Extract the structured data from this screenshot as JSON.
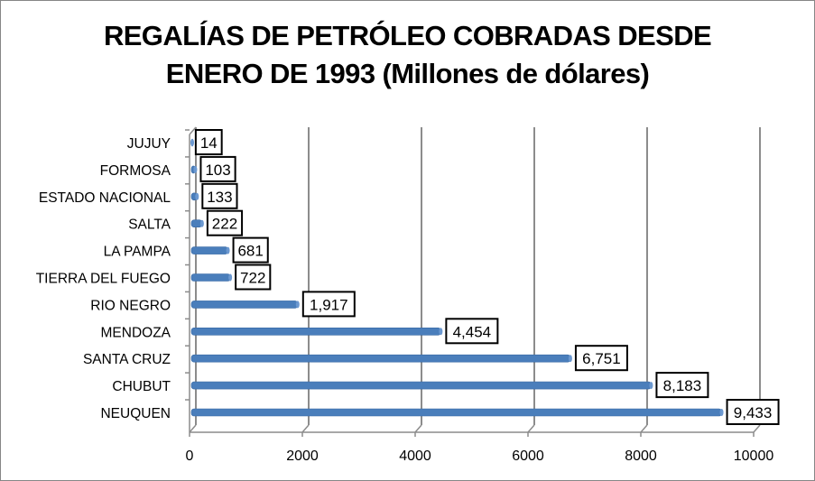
{
  "chart_data": {
    "type": "bar",
    "orientation": "horizontal",
    "title_lines": [
      "REGALÍAS DE PETRÓLEO COBRADAS DESDE",
      "ENERO DE 1993 (Millones de dólares)"
    ],
    "categories": [
      "JUJUY",
      "FORMOSA",
      "ESTADO NACIONAL",
      "SALTA",
      "LA PAMPA",
      "TIERRA DEL FUEGO",
      "RIO NEGRO",
      "MENDOZA",
      "SANTA CRUZ",
      "CHUBUT",
      "NEUQUEN"
    ],
    "values": [
      14,
      103,
      133,
      222,
      681,
      722,
      1917,
      4454,
      6751,
      8183,
      9433
    ],
    "data_labels": [
      "14",
      "103",
      "133",
      "222",
      "681",
      "722",
      "1,917",
      "4,454",
      "6,751",
      "8,183",
      "9,433"
    ],
    "xlim": [
      0,
      10000
    ],
    "xticks": [
      "0",
      "2000",
      "4000",
      "6000",
      "8000",
      "10000"
    ],
    "grid": true,
    "bar_color": "#4a7ebb",
    "xlabel": "",
    "ylabel": ""
  }
}
